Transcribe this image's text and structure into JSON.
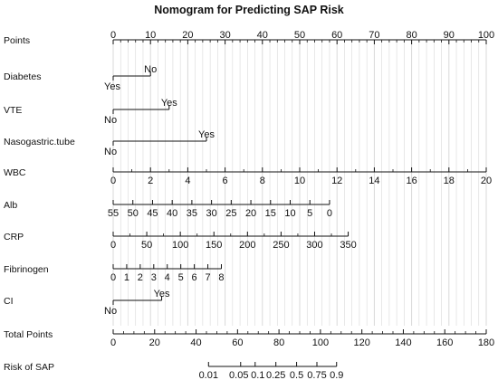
{
  "chart_data": {
    "type": "nomogram",
    "title": "Nomogram for Predicting SAP Risk",
    "colors": {
      "axis": "#111111",
      "grid": "#d9d9d9"
    },
    "points_axis": {
      "min": 0,
      "max": 100,
      "major": 10,
      "minor": 2
    },
    "rows": [
      {
        "name": "points",
        "label": "Points",
        "kind": "scale",
        "from": 0,
        "to": 100,
        "ticks": [
          0,
          10,
          20,
          30,
          40,
          50,
          60,
          70,
          80,
          90,
          100
        ],
        "minor": [
          2,
          4,
          6,
          8,
          12,
          14,
          16,
          18,
          22,
          24,
          26,
          28,
          32,
          34,
          36,
          38,
          42,
          44,
          46,
          48,
          52,
          54,
          56,
          58,
          62,
          64,
          66,
          68,
          72,
          74,
          76,
          78,
          82,
          84,
          86,
          88,
          92,
          94,
          96,
          98
        ],
        "labels": [
          "0",
          "10",
          "20",
          "30",
          "40",
          "50",
          "60",
          "70",
          "80",
          "90",
          "100"
        ],
        "label_pos": "above"
      },
      {
        "name": "diabetes",
        "label": "Diabetes",
        "kind": "binary",
        "levels": [
          {
            "label": "Yes",
            "points": 0,
            "pos": "below"
          },
          {
            "label": "No",
            "points": 10,
            "pos": "above"
          }
        ]
      },
      {
        "name": "vte",
        "label": "VTE",
        "kind": "binary",
        "levels": [
          {
            "label": "No",
            "points": 0,
            "pos": "below"
          },
          {
            "label": "Yes",
            "points": 15,
            "pos": "above"
          }
        ]
      },
      {
        "name": "nasogastric",
        "label": "Nasogastric.tube",
        "kind": "binary",
        "levels": [
          {
            "label": "No",
            "points": 0,
            "pos": "below"
          },
          {
            "label": "Yes",
            "points": 25,
            "pos": "above"
          }
        ]
      },
      {
        "name": "wbc",
        "label": "WBC",
        "kind": "scale",
        "from": 0,
        "to": 20,
        "ticks": [
          0,
          2,
          4,
          6,
          8,
          10,
          12,
          14,
          16,
          18,
          20
        ],
        "minor": [
          1,
          3,
          5,
          7,
          9,
          11,
          13,
          15,
          17,
          19
        ],
        "labels": [
          "0",
          "2",
          "4",
          "6",
          "8",
          "10",
          "12",
          "14",
          "16",
          "18",
          "20"
        ],
        "label_pos": "below"
      },
      {
        "name": "alb",
        "label": "Alb",
        "kind": "scale",
        "from": 55,
        "to": 0,
        "ticks": [
          55,
          50,
          45,
          40,
          35,
          30,
          25,
          20,
          15,
          10,
          5,
          0
        ],
        "minor": [],
        "labels": [
          "55",
          "50",
          "45",
          "40",
          "35",
          "30",
          "25",
          "20",
          "15",
          "10",
          "5",
          "0"
        ],
        "label_pos": "below"
      },
      {
        "name": "crp",
        "label": "CRP",
        "kind": "scale",
        "from": 0,
        "to": 350,
        "ticks": [
          0,
          50,
          100,
          150,
          200,
          250,
          300,
          350
        ],
        "minor": [
          25,
          75,
          125,
          175,
          225,
          275,
          325
        ],
        "labels": [
          "0",
          "50",
          "100",
          "150",
          "200",
          "250",
          "300",
          "350"
        ],
        "label_pos": "below"
      },
      {
        "name": "fibrinogen",
        "label": "Fibrinogen",
        "kind": "scale",
        "from": 0,
        "to": 8,
        "ticks": [
          0,
          1,
          2,
          3,
          4,
          5,
          6,
          7,
          8
        ],
        "minor": [],
        "labels": [
          "0",
          "1",
          "2",
          "3",
          "4",
          "5",
          "6",
          "7",
          "8"
        ],
        "label_pos": "below"
      },
      {
        "name": "ci",
        "label": "CI",
        "kind": "binary",
        "levels": [
          {
            "label": "No",
            "points": 0,
            "pos": "below"
          },
          {
            "label": "Yes",
            "points": 13,
            "pos": "above"
          }
        ]
      },
      {
        "name": "total",
        "label": "Total Points",
        "kind": "scale",
        "from": 0,
        "to": 180,
        "ticks": [
          0,
          20,
          40,
          60,
          80,
          100,
          120,
          140,
          160,
          180
        ],
        "minor": [
          5,
          10,
          15,
          25,
          30,
          35,
          45,
          50,
          55,
          65,
          70,
          75,
          85,
          90,
          95,
          105,
          110,
          115,
          125,
          130,
          135,
          145,
          150,
          155,
          165,
          170,
          175
        ],
        "labels": [
          "0",
          "20",
          "40",
          "60",
          "80",
          "100",
          "120",
          "140",
          "160",
          "180"
        ],
        "label_pos": "below"
      },
      {
        "name": "risk",
        "label": "Risk of SAP",
        "kind": "risk",
        "ticks": [
          0.01,
          0.05,
          0.1,
          0.25,
          0.5,
          0.75,
          0.9
        ],
        "total_points": [
          46,
          61.5,
          68.5,
          78.5,
          88.5,
          98.3,
          107.8
        ],
        "labels": [
          "0.01",
          "0.05",
          "0.1",
          "0.25",
          "0.5",
          "0.75",
          "0.9"
        ],
        "label_pos": "below"
      }
    ]
  }
}
